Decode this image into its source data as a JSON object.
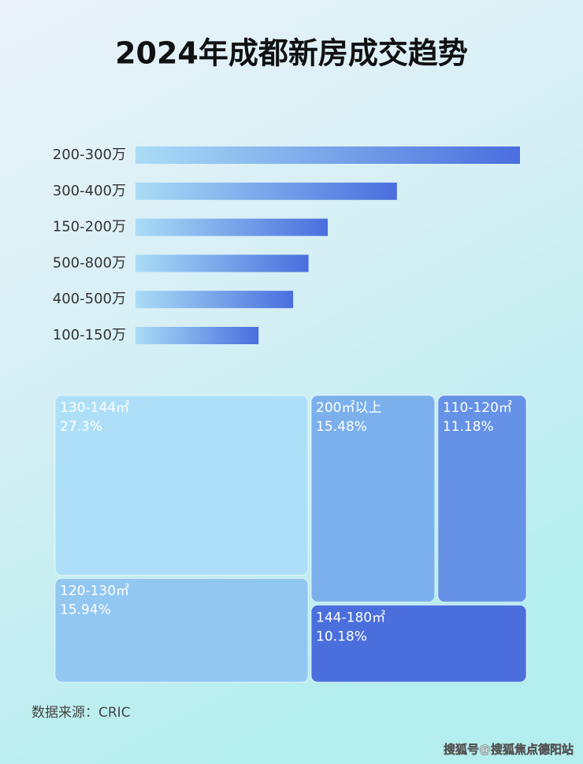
{
  "chart_data": [
    {
      "type": "bar",
      "title": "2024年成都新房成交趋势",
      "categories": [
        "200-300万",
        "300-400万",
        "150-200万",
        "500-800万",
        "400-500万",
        "100-150万"
      ],
      "values": [
        100,
        68,
        50,
        45,
        41,
        32
      ],
      "colors": [
        "#aadcf6",
        "#4a6ede"
      ]
    },
    {
      "type": "treemap",
      "categories": [
        "130-144㎡",
        "200㎡以上",
        "110-120㎡",
        "120-130㎡",
        "144-180㎡"
      ],
      "values": [
        27.3,
        15.48,
        11.18,
        15.94,
        10.18
      ],
      "value_labels": [
        "27.3%",
        "15.48%",
        "11.18%",
        "15.94%",
        "10.18%"
      ],
      "colors": [
        "#ade0f8",
        "#7cb0ec",
        "#6592e6",
        "#92c7f1",
        "#4a6fdd"
      ]
    }
  ],
  "source": "数据来源：CRIC",
  "watermark": "搜狐号@搜狐焦点德阳站"
}
